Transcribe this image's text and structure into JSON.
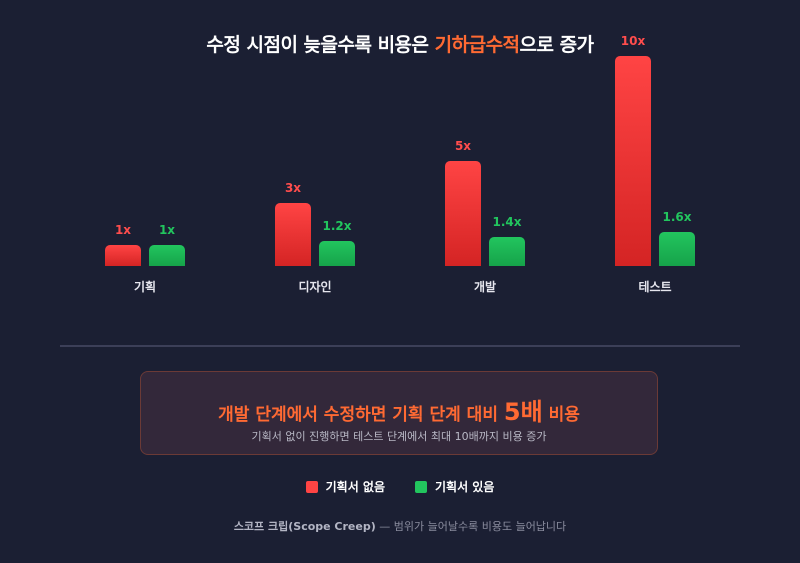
{
  "title": {
    "prefix": "수정 시점이 늦을수록 비용은 ",
    "highlight": "기하급수적",
    "suffix": "으로 증가"
  },
  "colors": {
    "background": "#1b1f33",
    "red": "#ff4444",
    "green": "#22c55e",
    "accent": "#ff6a33"
  },
  "chart_data": {
    "type": "bar",
    "title": "수정 시점이 늦을수록 비용은 기하급수적으로 증가",
    "categories": [
      "기획",
      "디자인",
      "개발",
      "테스트"
    ],
    "series": [
      {
        "name": "기획서 없음",
        "values": [
          1,
          3,
          5,
          10
        ],
        "labels": [
          "1x",
          "3x",
          "5x",
          "10x"
        ],
        "color": "#ff4444"
      },
      {
        "name": "기획서 있음",
        "values": [
          1,
          1.2,
          1.4,
          1.6
        ],
        "labels": [
          "1x",
          "1.2x",
          "1.4x",
          "1.6x"
        ],
        "color": "#22c55e"
      }
    ],
    "xlabel": "",
    "ylabel": "",
    "ylim": [
      0,
      10
    ],
    "grid": false,
    "legend_position": "bottom"
  },
  "callout": {
    "main_prefix": "개발 단계에서 수정하면 기획 단계 대비 ",
    "main_big": "5배",
    "main_suffix": " 비용",
    "sub": "기획서 없이 진행하면 테스트 단계에서 최대 10배까지 비용 증가"
  },
  "legend": [
    {
      "label": "기획서 없음"
    },
    {
      "label": "기획서 있음"
    }
  ],
  "footer": {
    "bold": "스코프 크립(Scope Creep)",
    "rest": " — 범위가 늘어날수록 비용도 늘어납니다"
  }
}
